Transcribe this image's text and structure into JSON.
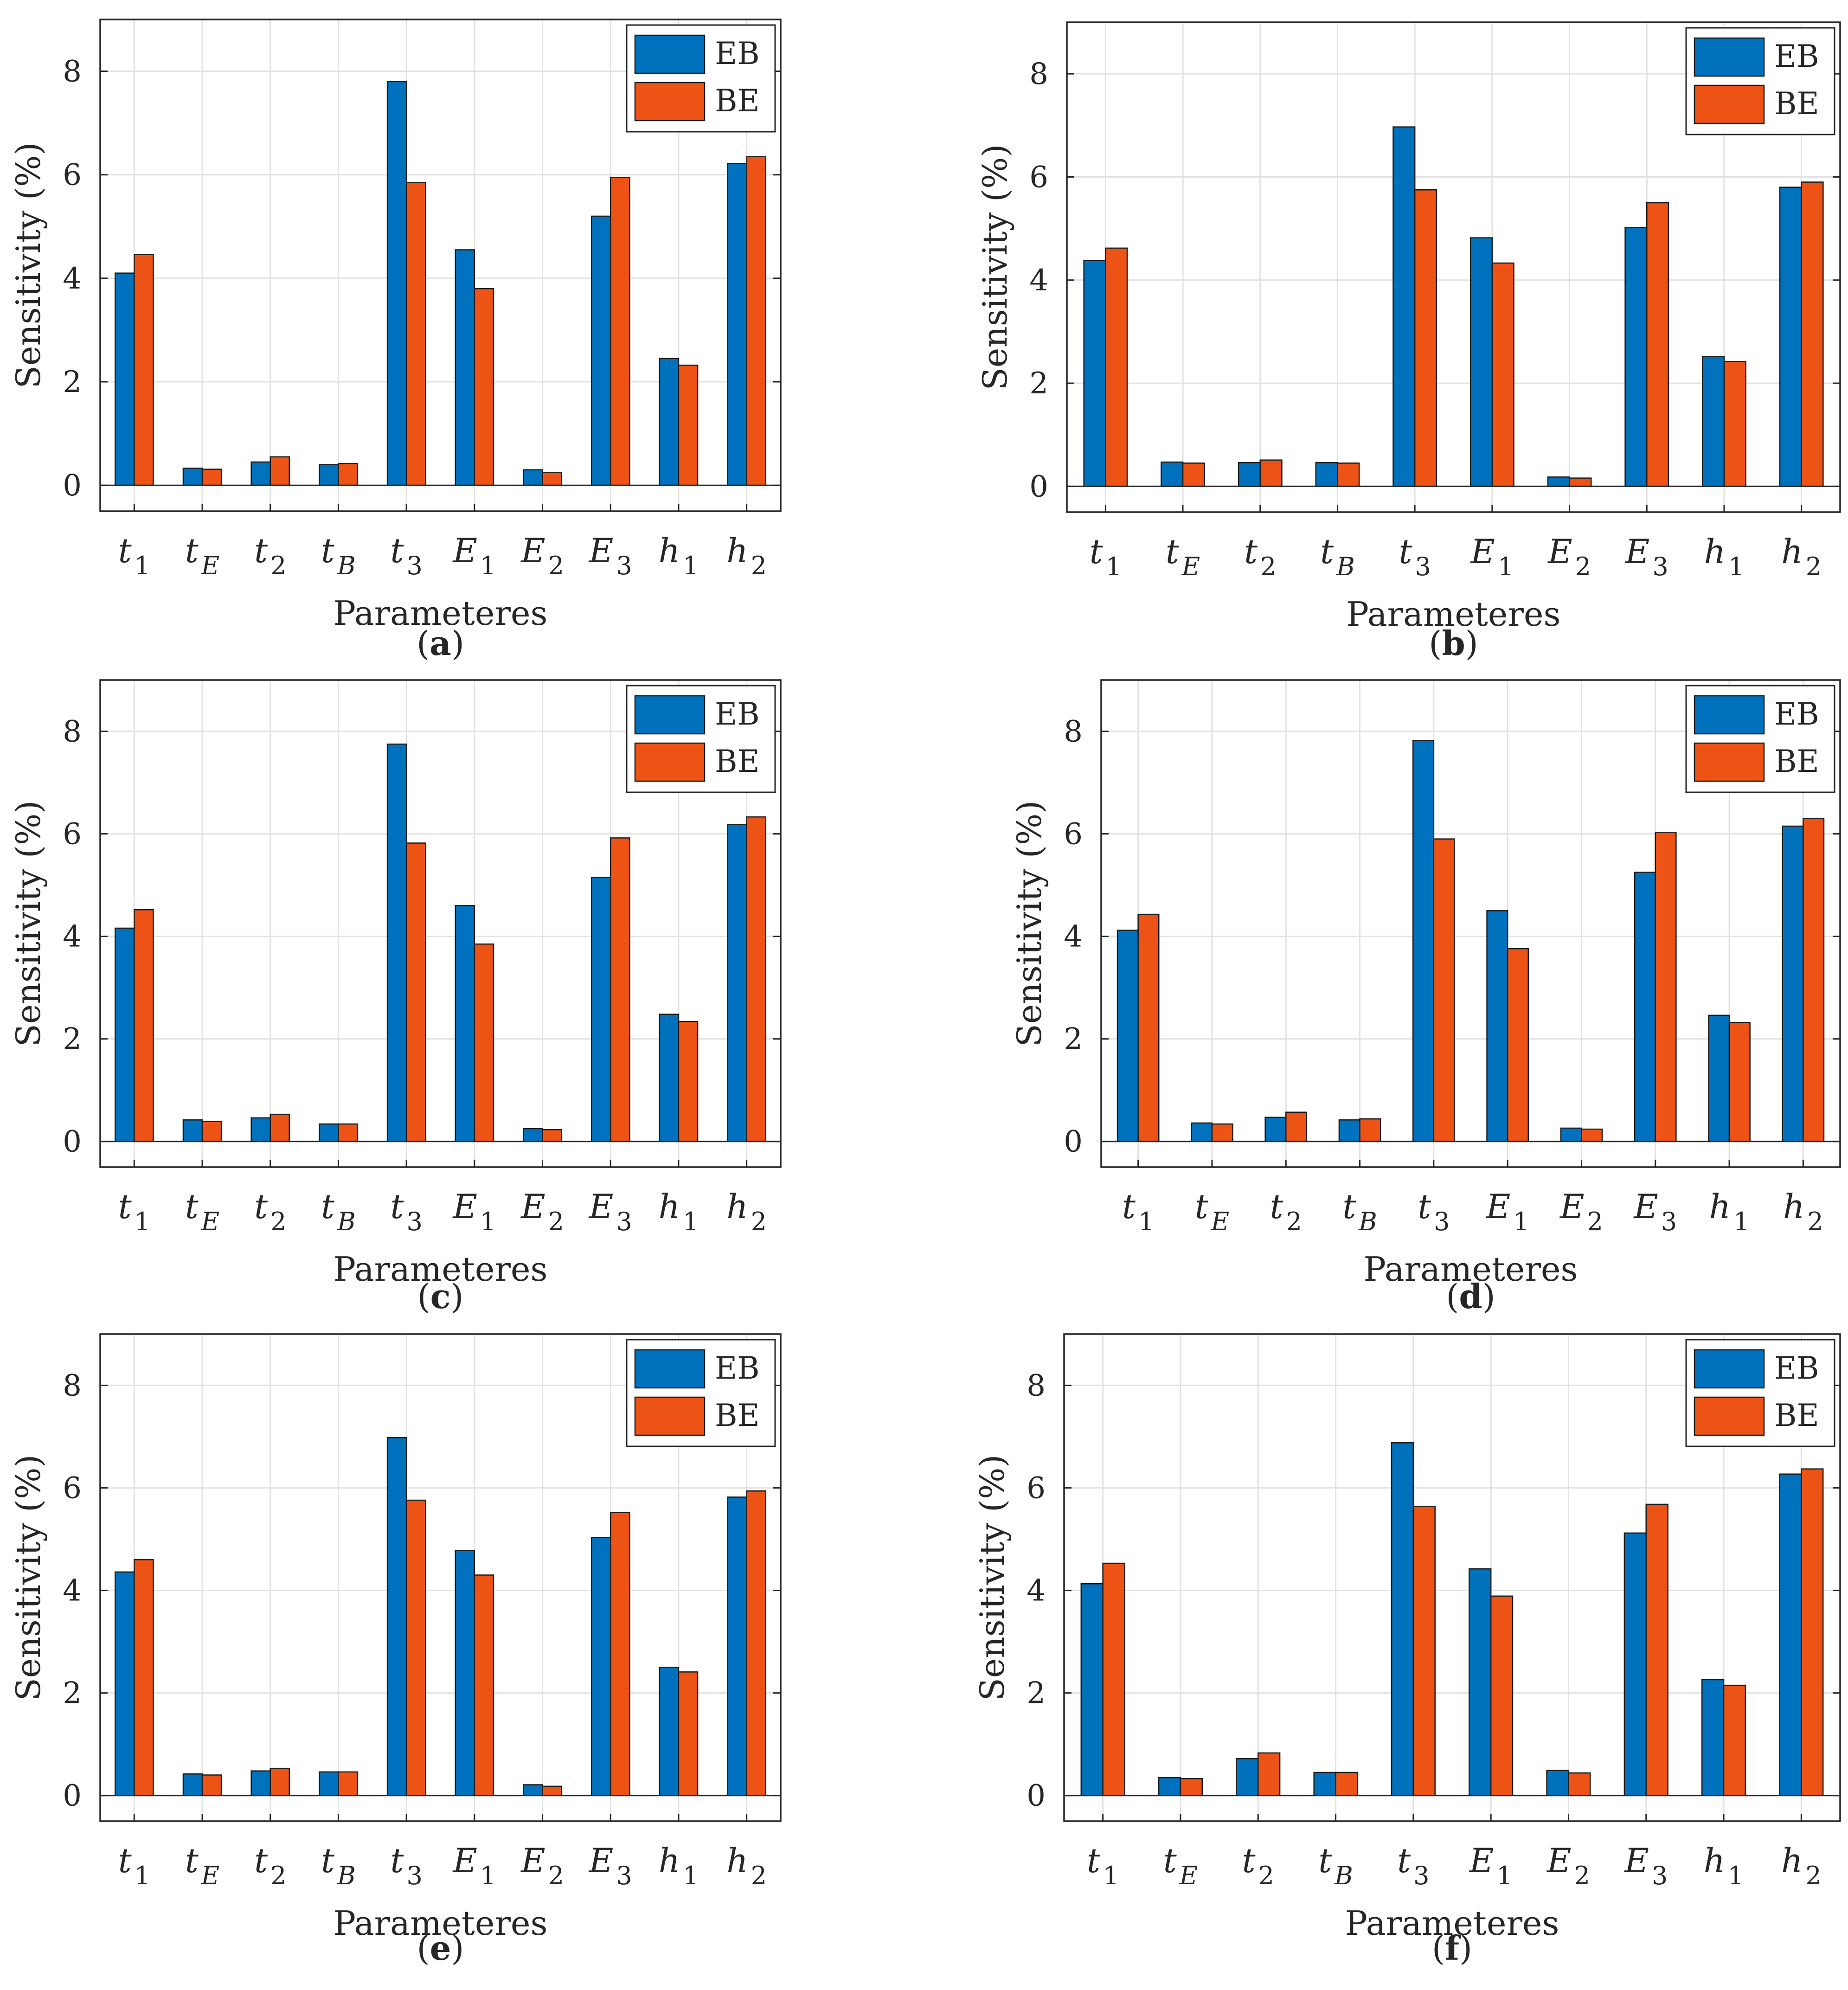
{
  "figure": {
    "colors": {
      "EB": "#0072BD",
      "BE": "#EE5316",
      "axis": "#262626",
      "grid": "#e2e2e2",
      "edge": "#1a1a1a"
    }
  },
  "chart_data": [
    {
      "panel_label": "a",
      "caption": "(a)",
      "type": "bar",
      "ylabel": "Sensitivity (%)",
      "xlabel": "Parameteres",
      "ylim": [
        -0.5,
        9
      ],
      "yticks": [
        0,
        2,
        4,
        6,
        8
      ],
      "grid": true,
      "legend_position": "top-right",
      "categories": [
        {
          "base": "t",
          "sub": "1"
        },
        {
          "base": "t",
          "sub": "E"
        },
        {
          "base": "t",
          "sub": "2"
        },
        {
          "base": "t",
          "sub": "B"
        },
        {
          "base": "t",
          "sub": "3"
        },
        {
          "base": "E",
          "sub": "1"
        },
        {
          "base": "E",
          "sub": "2"
        },
        {
          "base": "E",
          "sub": "3"
        },
        {
          "base": "h",
          "sub": "1"
        },
        {
          "base": "h",
          "sub": "2"
        }
      ],
      "series": [
        {
          "name": "EB",
          "values": [
            4.1,
            0.33,
            0.45,
            0.4,
            7.8,
            4.55,
            0.3,
            5.2,
            2.45,
            6.22
          ]
        },
        {
          "name": "BE",
          "values": [
            4.46,
            0.31,
            0.55,
            0.42,
            5.85,
            3.8,
            0.25,
            5.95,
            2.32,
            6.35
          ]
        }
      ]
    },
    {
      "panel_label": "b",
      "caption": "(b)",
      "type": "bar",
      "ylabel": "Sensitivity (%)",
      "xlabel": "Parameteres",
      "ylim": [
        -0.5,
        9
      ],
      "yticks": [
        0,
        2,
        4,
        6,
        8
      ],
      "grid": true,
      "legend_position": "top-right",
      "categories": [
        {
          "base": "t",
          "sub": "1"
        },
        {
          "base": "t",
          "sub": "E"
        },
        {
          "base": "t",
          "sub": "2"
        },
        {
          "base": "t",
          "sub": "B"
        },
        {
          "base": "t",
          "sub": "3"
        },
        {
          "base": "E",
          "sub": "1"
        },
        {
          "base": "E",
          "sub": "2"
        },
        {
          "base": "E",
          "sub": "3"
        },
        {
          "base": "h",
          "sub": "1"
        },
        {
          "base": "h",
          "sub": "2"
        }
      ],
      "series": [
        {
          "name": "EB",
          "values": [
            4.38,
            0.47,
            0.46,
            0.46,
            6.97,
            4.82,
            0.18,
            5.02,
            2.52,
            5.8
          ]
        },
        {
          "name": "BE",
          "values": [
            4.62,
            0.45,
            0.51,
            0.45,
            5.75,
            4.33,
            0.16,
            5.5,
            2.42,
            5.9
          ]
        }
      ]
    },
    {
      "panel_label": "c",
      "caption": "(c)",
      "type": "bar",
      "ylabel": "Sensitivity (%)",
      "xlabel": "Parameteres",
      "ylim": [
        -0.5,
        9
      ],
      "yticks": [
        0,
        2,
        4,
        6,
        8
      ],
      "grid": true,
      "legend_position": "top-right",
      "categories": [
        {
          "base": "t",
          "sub": "1"
        },
        {
          "base": "t",
          "sub": "E"
        },
        {
          "base": "t",
          "sub": "2"
        },
        {
          "base": "t",
          "sub": "B"
        },
        {
          "base": "t",
          "sub": "3"
        },
        {
          "base": "E",
          "sub": "1"
        },
        {
          "base": "E",
          "sub": "2"
        },
        {
          "base": "E",
          "sub": "3"
        },
        {
          "base": "h",
          "sub": "1"
        },
        {
          "base": "h",
          "sub": "2"
        }
      ],
      "series": [
        {
          "name": "EB",
          "values": [
            4.16,
            0.42,
            0.46,
            0.34,
            7.75,
            4.6,
            0.25,
            5.15,
            2.48,
            6.18
          ]
        },
        {
          "name": "BE",
          "values": [
            4.52,
            0.39,
            0.53,
            0.34,
            5.82,
            3.85,
            0.23,
            5.92,
            2.34,
            6.33
          ]
        }
      ]
    },
    {
      "panel_label": "d",
      "caption": "(d)",
      "type": "bar",
      "ylabel": "Sensitivity (%)",
      "xlabel": "Parameteres",
      "ylim": [
        -0.5,
        9
      ],
      "yticks": [
        0,
        2,
        4,
        6,
        8
      ],
      "grid": true,
      "legend_position": "top-right",
      "categories": [
        {
          "base": "t",
          "sub": "1"
        },
        {
          "base": "t",
          "sub": "E"
        },
        {
          "base": "t",
          "sub": "2"
        },
        {
          "base": "t",
          "sub": "B"
        },
        {
          "base": "t",
          "sub": "3"
        },
        {
          "base": "E",
          "sub": "1"
        },
        {
          "base": "E",
          "sub": "2"
        },
        {
          "base": "E",
          "sub": "3"
        },
        {
          "base": "h",
          "sub": "1"
        },
        {
          "base": "h",
          "sub": "2"
        }
      ],
      "series": [
        {
          "name": "EB",
          "values": [
            4.12,
            0.36,
            0.47,
            0.42,
            7.82,
            4.5,
            0.26,
            5.25,
            2.46,
            6.15
          ]
        },
        {
          "name": "BE",
          "values": [
            4.43,
            0.34,
            0.57,
            0.44,
            5.9,
            3.76,
            0.24,
            6.03,
            2.32,
            6.3
          ]
        }
      ]
    },
    {
      "panel_label": "e",
      "caption": "(e)",
      "type": "bar",
      "ylabel": "Sensitivity (%)",
      "xlabel": "Parameteres",
      "ylim": [
        -0.5,
        9
      ],
      "yticks": [
        0,
        2,
        4,
        6,
        8
      ],
      "grid": true,
      "legend_position": "top-right",
      "categories": [
        {
          "base": "t",
          "sub": "1"
        },
        {
          "base": "t",
          "sub": "E"
        },
        {
          "base": "t",
          "sub": "2"
        },
        {
          "base": "t",
          "sub": "B"
        },
        {
          "base": "t",
          "sub": "3"
        },
        {
          "base": "E",
          "sub": "1"
        },
        {
          "base": "E",
          "sub": "2"
        },
        {
          "base": "E",
          "sub": "3"
        },
        {
          "base": "h",
          "sub": "1"
        },
        {
          "base": "h",
          "sub": "2"
        }
      ],
      "series": [
        {
          "name": "EB",
          "values": [
            4.36,
            0.42,
            0.48,
            0.46,
            6.98,
            4.78,
            0.21,
            5.03,
            2.5,
            5.82
          ]
        },
        {
          "name": "BE",
          "values": [
            4.6,
            0.4,
            0.53,
            0.46,
            5.76,
            4.3,
            0.18,
            5.52,
            2.41,
            5.94
          ]
        }
      ]
    },
    {
      "panel_label": "f",
      "caption": "(f)",
      "type": "bar",
      "ylabel": "Sensitivity (%)",
      "xlabel": "Parameteres",
      "ylim": [
        -0.5,
        9
      ],
      "yticks": [
        0,
        2,
        4,
        6,
        8
      ],
      "grid": true,
      "legend_position": "top-right",
      "categories": [
        {
          "base": "t",
          "sub": "1"
        },
        {
          "base": "t",
          "sub": "E"
        },
        {
          "base": "t",
          "sub": "2"
        },
        {
          "base": "t",
          "sub": "B"
        },
        {
          "base": "t",
          "sub": "3"
        },
        {
          "base": "E",
          "sub": "1"
        },
        {
          "base": "E",
          "sub": "2"
        },
        {
          "base": "E",
          "sub": "3"
        },
        {
          "base": "h",
          "sub": "1"
        },
        {
          "base": "h",
          "sub": "2"
        }
      ],
      "series": [
        {
          "name": "EB",
          "values": [
            4.13,
            0.35,
            0.72,
            0.45,
            6.88,
            4.42,
            0.49,
            5.12,
            2.26,
            6.27
          ]
        },
        {
          "name": "BE",
          "values": [
            4.53,
            0.33,
            0.83,
            0.45,
            5.64,
            3.89,
            0.44,
            5.68,
            2.15,
            6.37
          ]
        }
      ]
    }
  ]
}
